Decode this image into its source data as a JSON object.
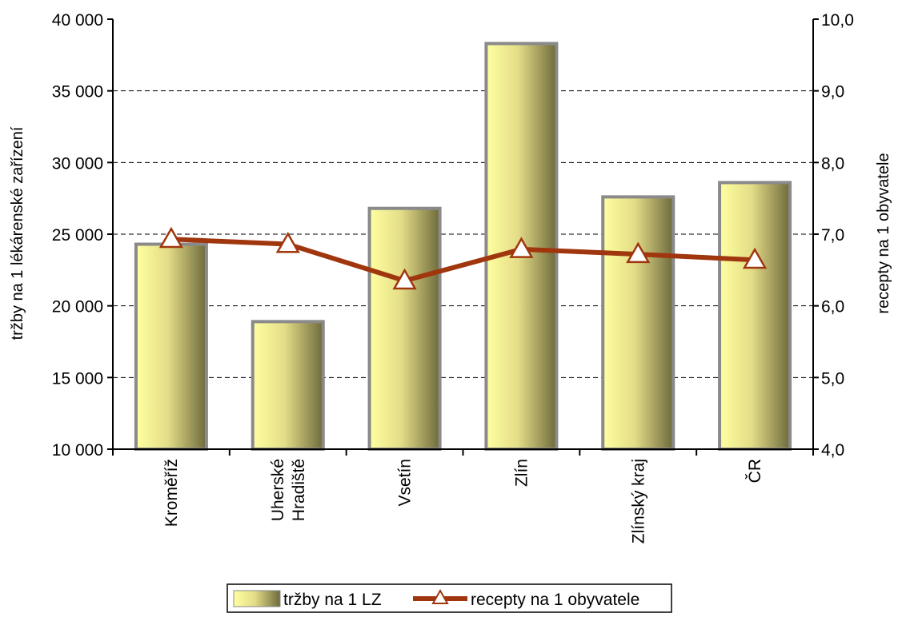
{
  "chart_data": {
    "type": "bar",
    "categories": [
      [
        "Kroměříž"
      ],
      [
        "Uherské",
        "Hradiště"
      ],
      [
        "Vsetín"
      ],
      [
        "Zlín"
      ],
      [
        "Zlínský kraj"
      ],
      [
        "ČR"
      ]
    ],
    "series": [
      {
        "name": "tržby na 1 LZ",
        "type": "bar",
        "axis": "left",
        "values": [
          24300,
          18900,
          26800,
          38300,
          27600,
          28600
        ]
      },
      {
        "name": "recepty na 1 obyvatele",
        "type": "line",
        "axis": "right",
        "marker": "triangle",
        "values": [
          6.93,
          6.86,
          6.35,
          6.79,
          6.72,
          6.64
        ]
      }
    ],
    "ylabel_left": "tržby na 1 lékárenské zařízení",
    "ylabel_right": "recepty na 1 obyvatele",
    "ylim_left": [
      10000,
      40000
    ],
    "ylim_right": [
      4.0,
      10.0
    ],
    "yticks_left": [
      "10 000",
      "15 000",
      "20 000",
      "25 000",
      "30 000",
      "35 000",
      "40 000"
    ],
    "yticks_right": [
      "4,0",
      "5,0",
      "6,0",
      "7,0",
      "8,0",
      "9,0",
      "10,0"
    ],
    "grid": "horizontal-dashed",
    "legend_position": "bottom",
    "colors": {
      "bar_light": "#ffffa0",
      "bar_dark": "#6e6a3c",
      "bar_border": "#8a8a8a",
      "line": "#a0360e",
      "marker_fill": "#ffffff"
    }
  }
}
